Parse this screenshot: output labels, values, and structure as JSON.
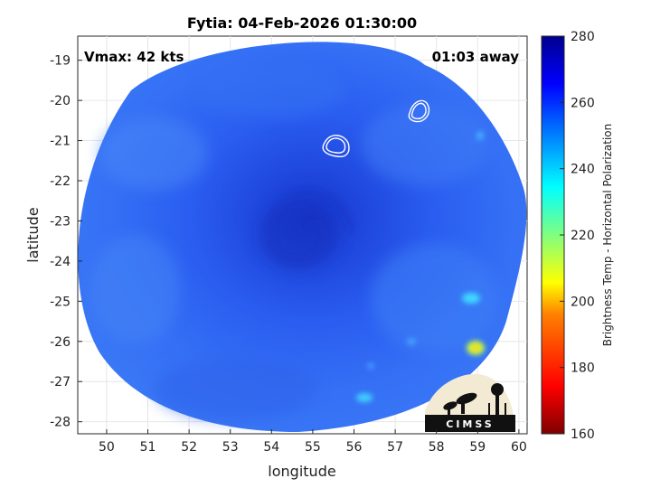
{
  "chart_data": {
    "type": "heatmap",
    "title": "Fytia: 04-Feb-2026 01:30:00",
    "xlabel": "longitude",
    "ylabel": "latitude",
    "xlim": [
      49.3,
      60.2
    ],
    "ylim": [
      -28.3,
      -18.4
    ],
    "x_ticks": [
      50,
      51,
      52,
      53,
      54,
      55,
      56,
      57,
      58,
      59,
      60
    ],
    "y_ticks": [
      -19,
      -20,
      -21,
      -22,
      -23,
      -24,
      -25,
      -26,
      -27,
      -28
    ],
    "grid": true,
    "annotations": {
      "vmax": "Vmax: 42 kts",
      "time_away": "01:03 away"
    },
    "colorbar": {
      "label": "Brightness Temp - Horizontal Polarization",
      "range": [
        160,
        280
      ],
      "ticks": [
        280,
        260,
        240,
        220,
        200,
        180,
        160
      ],
      "colormap": [
        "#7f0000",
        "#ff0000",
        "#ff8000",
        "#ffff00",
        "#80ff80",
        "#00ffff",
        "#0080ff",
        "#0000ff",
        "#00008f"
      ]
    },
    "storm_center": {
      "lon": 55.0,
      "lat": -23.3
    },
    "logo": "CIMSS"
  }
}
